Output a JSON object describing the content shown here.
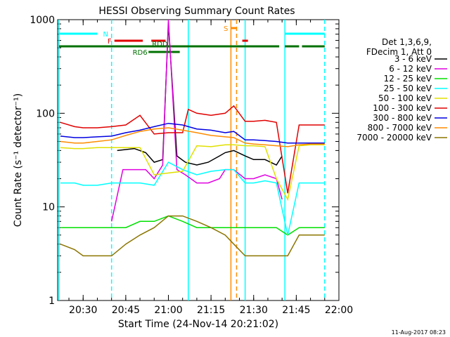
{
  "chart_data": {
    "type": "line",
    "title": "HESSI Observing Summary Count Rates",
    "xlabel": "Start Time (24-Nov-14 20:21:02)",
    "ylabel": "Count Rate (s⁻¹ detector⁻¹)",
    "yscale": "log",
    "ylim": [
      1,
      1000
    ],
    "y_ticks": [
      {
        "value": 1,
        "label": "1"
      },
      {
        "value": 10,
        "label": "10"
      },
      {
        "value": 100,
        "label": "100"
      },
      {
        "value": 1000,
        "label": "1000"
      }
    ],
    "xlim": [
      "20:21:02",
      "22:00"
    ],
    "x_ticks": [
      "20:30",
      "20:45",
      "21:00",
      "21:15",
      "21:30",
      "21:45",
      "22:00"
    ],
    "legend_position": "right",
    "legend_header": [
      "Det 1,3,6,9,",
      "FDecim 1, Att 0"
    ],
    "series": [
      {
        "name": "3 - 6 keV",
        "color": "#000000",
        "x": [
          "20:42",
          "20:48",
          "20:52",
          "20:55",
          "20:58",
          "21:00",
          "21:03",
          "21:06",
          "21:10",
          "21:14",
          "21:18",
          "21:20",
          "21:23",
          "21:27",
          "21:30",
          "21:34",
          "21:38",
          "21:40"
        ],
        "values": [
          40,
          42,
          38,
          30,
          32,
          900,
          35,
          30,
          28,
          30,
          35,
          38,
          40,
          35,
          32,
          32,
          28,
          35
        ]
      },
      {
        "name": "6 - 12 keV",
        "color": "#e000e0",
        "x": [
          "20:40",
          "20:44",
          "20:48",
          "20:52",
          "20:55",
          "20:58",
          "21:00",
          "21:03",
          "21:06",
          "21:10",
          "21:14",
          "21:18",
          "21:20",
          "21:23",
          "21:27",
          "21:30",
          "21:34",
          "21:38",
          "21:40"
        ],
        "values": [
          7,
          25,
          25,
          25,
          20,
          28,
          1000,
          25,
          22,
          18,
          18,
          20,
          25,
          25,
          20,
          20,
          22,
          20,
          12
        ]
      },
      {
        "name": "12 - 25 keV",
        "color": "#00e000",
        "x": [
          "20:22",
          "20:27",
          "20:30",
          "20:35",
          "20:40",
          "20:45",
          "20:50",
          "20:55",
          "21:00",
          "21:05",
          "21:10",
          "21:15",
          "21:20",
          "21:23",
          "21:27",
          "21:30",
          "21:34",
          "21:38",
          "21:42",
          "21:46",
          "21:50",
          "21:55"
        ],
        "values": [
          6,
          6,
          6,
          6,
          6,
          6,
          7,
          7,
          8,
          7,
          6,
          6,
          6,
          6,
          6,
          6,
          6,
          6,
          5,
          6,
          6,
          6
        ]
      },
      {
        "name": "25 - 50 keV",
        "color": "#00ffff",
        "x": [
          "20:22",
          "20:27",
          "20:30",
          "20:35",
          "20:40",
          "20:45",
          "20:50",
          "20:55",
          "21:00",
          "21:05",
          "21:10",
          "21:15",
          "21:20",
          "21:23",
          "21:27",
          "21:30",
          "21:34",
          "21:38",
          "21:42",
          "21:46",
          "21:50",
          "21:55"
        ],
        "values": [
          18,
          18,
          17,
          17,
          18,
          18,
          18,
          17,
          30,
          25,
          22,
          24,
          25,
          25,
          18,
          18,
          19,
          18,
          5,
          18,
          18,
          18
        ]
      },
      {
        "name": "50 - 100 keV",
        "color": "#e0e000",
        "x": [
          "20:22",
          "20:27",
          "20:30",
          "20:35",
          "20:40",
          "20:45",
          "20:50",
          "20:55",
          "21:00",
          "21:05",
          "21:10",
          "21:15",
          "21:20",
          "21:23",
          "21:27",
          "21:30",
          "21:34",
          "21:38",
          "21:42",
          "21:46",
          "21:50",
          "21:55"
        ],
        "values": [
          43,
          42,
          42,
          43,
          43,
          43,
          43,
          22,
          23,
          24,
          45,
          44,
          46,
          46,
          45,
          45,
          44,
          20,
          12,
          45,
          46,
          46
        ]
      },
      {
        "name": "100 - 300 keV",
        "color": "#e00000",
        "x": [
          "20:22",
          "20:27",
          "20:30",
          "20:35",
          "20:40",
          "20:45",
          "20:50",
          "20:55",
          "21:00",
          "21:05",
          "21:07",
          "21:10",
          "21:15",
          "21:20",
          "21:23",
          "21:27",
          "21:30",
          "21:34",
          "21:38",
          "21:42",
          "21:46",
          "21:50",
          "21:55"
        ],
        "values": [
          80,
          72,
          70,
          70,
          72,
          75,
          95,
          60,
          62,
          62,
          110,
          100,
          95,
          100,
          120,
          82,
          82,
          84,
          80,
          14,
          75,
          75,
          75
        ]
      },
      {
        "name": "300 - 800 keV",
        "color": "#0000e0",
        "x": [
          "20:22",
          "20:27",
          "20:30",
          "20:35",
          "20:40",
          "20:45",
          "20:50",
          "20:55",
          "21:00",
          "21:05",
          "21:10",
          "21:15",
          "21:20",
          "21:23",
          "21:27",
          "21:30",
          "21:34",
          "21:38",
          "21:42",
          "21:46",
          "21:50",
          "21:55"
        ],
        "values": [
          57,
          55,
          55,
          56,
          57,
          62,
          66,
          72,
          78,
          75,
          68,
          66,
          62,
          64,
          52,
          52,
          51,
          50,
          48,
          48,
          48,
          48
        ]
      },
      {
        "name": "800 - 7000 keV",
        "color": "#ff8c00",
        "x": [
          "20:22",
          "20:27",
          "20:30",
          "20:35",
          "20:40",
          "20:45",
          "20:50",
          "20:55",
          "21:00",
          "21:05",
          "21:10",
          "21:15",
          "21:20",
          "21:23",
          "21:27",
          "21:30",
          "21:34",
          "21:38",
          "21:42",
          "21:46",
          "21:50",
          "21:55"
        ],
        "values": [
          50,
          48,
          48,
          50,
          52,
          58,
          64,
          68,
          70,
          66,
          62,
          58,
          56,
          55,
          48,
          47,
          46,
          45,
          44,
          46,
          47,
          47
        ]
      },
      {
        "name": "7000 - 20000 keV",
        "color": "#8b7500",
        "x": [
          "20:22",
          "20:27",
          "20:30",
          "20:35",
          "20:40",
          "20:45",
          "20:50",
          "20:55",
          "21:00",
          "21:05",
          "21:10",
          "21:15",
          "21:20",
          "21:23",
          "21:27",
          "21:30",
          "21:34",
          "21:38",
          "21:42",
          "21:46",
          "21:50",
          "21:55"
        ],
        "values": [
          4,
          3.5,
          3,
          3,
          3,
          4,
          5,
          6,
          8,
          8,
          7,
          6,
          5,
          4,
          3,
          3,
          3,
          3,
          3,
          5,
          5,
          5
        ]
      }
    ],
    "annotations": {
      "vlines": [
        {
          "time": "20:21:30",
          "color": "#00ffff",
          "style": "solid"
        },
        {
          "time": "20:40:00",
          "color": "#00ffff",
          "style": "dashed"
        },
        {
          "time": "21:07:00",
          "color": "#00ffff",
          "style": "solid"
        },
        {
          "time": "21:22:00",
          "color": "#ff8c00",
          "style": "solid"
        },
        {
          "time": "21:24:00",
          "color": "#ff8c00",
          "style": "dashed"
        },
        {
          "time": "21:27:00",
          "color": "#00ffff",
          "style": "solid"
        },
        {
          "time": "21:41:00",
          "color": "#00ffff",
          "style": "solid"
        },
        {
          "time": "21:55:00",
          "color": "#00ffff",
          "style": "dashed"
        }
      ],
      "bars": [
        {
          "label": "N",
          "color": "#00ffff",
          "segments": [
            [
              "20:21:30",
              "20:35:00"
            ],
            [
              "21:41:00",
              "21:55:00"
            ]
          ]
        },
        {
          "label": "S",
          "color": "#ff8c00",
          "segments": [
            [
              "21:22:00",
              "21:24:00"
            ]
          ]
        },
        {
          "label": "F",
          "color": "#e00000",
          "segments": [
            [
              "20:41:00",
              "20:51:00"
            ],
            [
              "20:54:00",
              "20:59:00"
            ],
            [
              "21:26:00",
              "21:28:00"
            ]
          ]
        },
        {
          "label": "RDD",
          "color": "#007000",
          "segments": [
            [
              "20:21:30",
              "21:39:00"
            ],
            [
              "21:41:00",
              "21:46:00"
            ],
            [
              "21:47:00",
              "21:55:00"
            ]
          ]
        },
        {
          "label": "RD6",
          "color": "#007000",
          "segments": [
            [
              "20:53:00",
              "21:04:00"
            ]
          ]
        }
      ]
    }
  },
  "footer": {
    "date": "11-Aug-2017 08:23"
  }
}
